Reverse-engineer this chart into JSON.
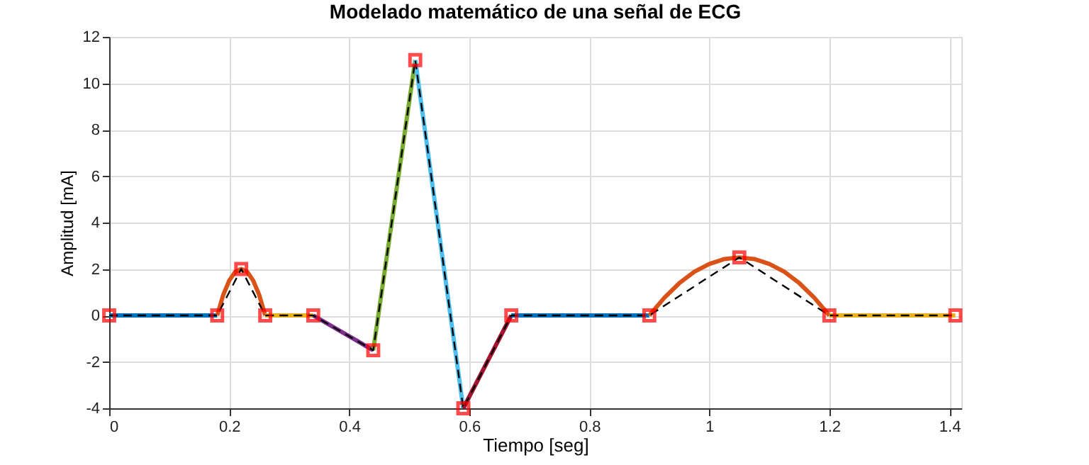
{
  "chart_data": {
    "type": "line",
    "title": "Modelado matemático de una señal de ECG",
    "xlabel": "Tiempo [seg]",
    "ylabel": "Amplitud [mA]",
    "xlim": [
      0,
      1.42
    ],
    "ylim": [
      -4,
      12
    ],
    "xticks": [
      0,
      0.2,
      0.4,
      0.6,
      0.8,
      1,
      1.2,
      1.4
    ],
    "yticks": [
      -4,
      -2,
      0,
      2,
      4,
      6,
      8,
      10,
      12
    ],
    "grid": true,
    "series": [
      {
        "color": "#0072bd",
        "x": [
          0,
          0.18
        ],
        "values": [
          0,
          0
        ]
      },
      {
        "color": "#d95319",
        "x": [
          0.18,
          0.19,
          0.2,
          0.21,
          0.22,
          0.23,
          0.24,
          0.25,
          0.26
        ],
        "values": [
          0,
          0.88,
          1.5,
          1.88,
          2,
          1.88,
          1.5,
          0.88,
          0
        ]
      },
      {
        "color": "#edb120",
        "x": [
          0.26,
          0.34
        ],
        "values": [
          0,
          0
        ]
      },
      {
        "color": "#7e2f8e",
        "x": [
          0.34,
          0.44
        ],
        "values": [
          0,
          -1.5
        ]
      },
      {
        "color": "#77ac30",
        "x": [
          0.44,
          0.51
        ],
        "values": [
          -1.5,
          11
        ]
      },
      {
        "color": "#4dbeee",
        "x": [
          0.51,
          0.59
        ],
        "values": [
          11,
          -4
        ]
      },
      {
        "color": "#a2142f",
        "x": [
          0.59,
          0.67
        ],
        "values": [
          -4,
          0
        ]
      },
      {
        "color": "#0072bd",
        "x": [
          0.67,
          0.9
        ],
        "values": [
          0,
          0
        ]
      },
      {
        "color": "#d95319",
        "x": [
          0.9,
          0.925,
          0.95,
          0.975,
          1,
          1.025,
          1.05,
          1.075,
          1.1,
          1.125,
          1.15,
          1.175,
          1.2
        ],
        "values": [
          0,
          0.76,
          1.39,
          1.88,
          2.22,
          2.43,
          2.5,
          2.43,
          2.22,
          1.88,
          1.39,
          0.76,
          0
        ]
      },
      {
        "color": "#edb120",
        "x": [
          1.2,
          1.41
        ],
        "values": [
          0,
          0
        ]
      },
      {
        "color": "#000000",
        "line_style": "dashed",
        "x": [
          0,
          0.18,
          0.22,
          0.26,
          0.34,
          0.44,
          0.51,
          0.59,
          0.67,
          0.9,
          1.05,
          1.2,
          1.41
        ],
        "values": [
          0,
          0,
          2,
          0,
          0,
          -1.5,
          11,
          -4,
          0,
          0,
          2.5,
          0,
          0
        ]
      },
      {
        "type": "scatter",
        "color": "#ff0000",
        "marker": "square",
        "x": [
          0,
          0.18,
          0.22,
          0.26,
          0.34,
          0.44,
          0.51,
          0.59,
          0.67,
          0.9,
          1.05,
          1.2,
          1.41
        ],
        "values": [
          0,
          0,
          2,
          0,
          0,
          -1.5,
          11,
          -4,
          0,
          0,
          2.5,
          0,
          0
        ]
      }
    ]
  }
}
